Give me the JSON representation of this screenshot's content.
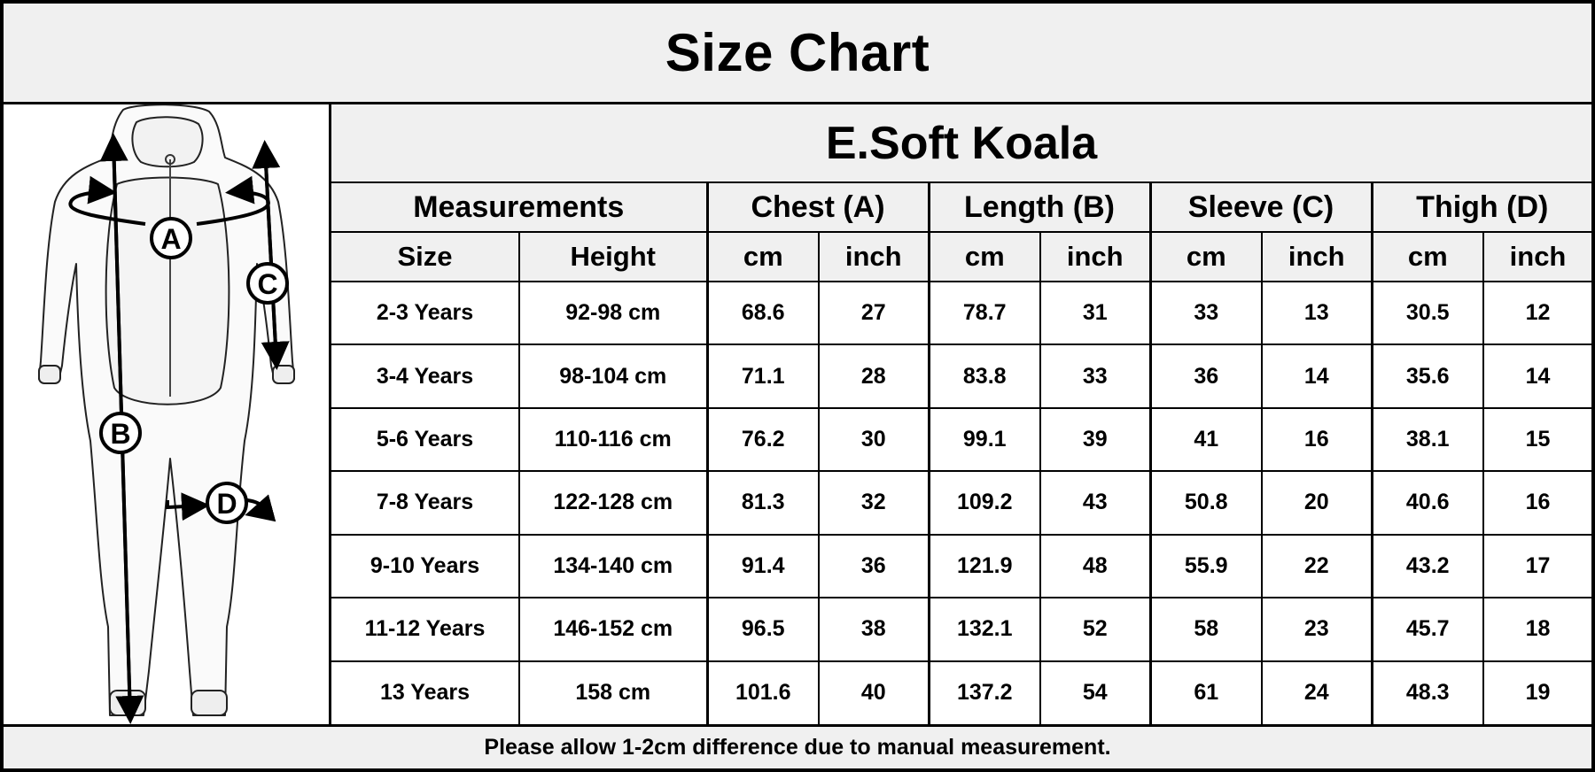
{
  "header": {
    "title": "Size Chart"
  },
  "figure": {
    "icon": "onesie-outline-icon",
    "markers": [
      "A",
      "B",
      "C",
      "D"
    ]
  },
  "table": {
    "product_name": "E.Soft Koala",
    "groups": [
      "Measurements",
      "Chest (A)",
      "Length (B)",
      "Sleeve (C)",
      "Thigh (D)"
    ],
    "units": [
      "Size",
      "Height",
      "cm",
      "inch",
      "cm",
      "inch",
      "cm",
      "inch",
      "cm",
      "inch"
    ],
    "rows": [
      [
        "2-3 Years",
        "92-98 cm",
        "68.6",
        "27",
        "78.7",
        "31",
        "33",
        "13",
        "30.5",
        "12"
      ],
      [
        "3-4 Years",
        "98-104 cm",
        "71.1",
        "28",
        "83.8",
        "33",
        "36",
        "14",
        "35.6",
        "14"
      ],
      [
        "5-6 Years",
        "110-116 cm",
        "76.2",
        "30",
        "99.1",
        "39",
        "41",
        "16",
        "38.1",
        "15"
      ],
      [
        "7-8 Years",
        "122-128 cm",
        "81.3",
        "32",
        "109.2",
        "43",
        "50.8",
        "20",
        "40.6",
        "16"
      ],
      [
        "9-10 Years",
        "134-140 cm",
        "91.4",
        "36",
        "121.9",
        "48",
        "55.9",
        "22",
        "43.2",
        "17"
      ],
      [
        "11-12 Years",
        "146-152 cm",
        "96.5",
        "38",
        "132.1",
        "52",
        "58",
        "23",
        "45.7",
        "18"
      ],
      [
        "13 Years",
        "158 cm",
        "101.6",
        "40",
        "137.2",
        "54",
        "61",
        "24",
        "48.3",
        "19"
      ]
    ]
  },
  "footer": {
    "note": "Please allow 1-2cm difference due to manual measurement."
  }
}
